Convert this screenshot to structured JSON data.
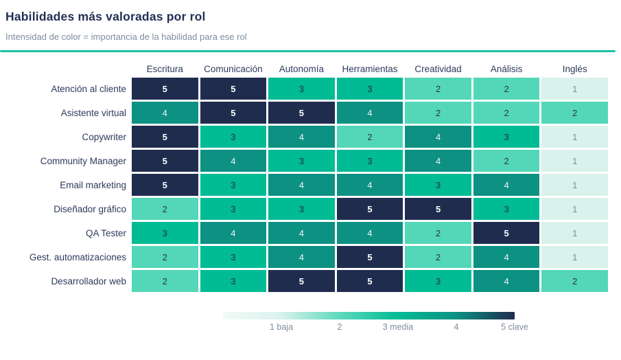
{
  "chart_data": {
    "type": "heatmap",
    "title": "Habilidades más valoradas por rol",
    "subtitle": "Intensidad de color = importancia de la habilidad para ese rol",
    "columns": [
      "Escritura",
      "Comunicación",
      "Autonomía",
      "Herramientas",
      "Creatividad",
      "Análisis",
      "Inglés"
    ],
    "rows": [
      "Atención al cliente",
      "Asistente virtual",
      "Copywriter",
      "Community Manager",
      "Email marketing",
      "Diseñador gráfico",
      "QA Tester",
      "Gest. automatizaciones",
      "Desarrollador web"
    ],
    "values": [
      [
        5,
        5,
        3,
        3,
        2,
        2,
        1
      ],
      [
        4,
        5,
        5,
        4,
        2,
        2,
        2
      ],
      [
        5,
        3,
        4,
        2,
        4,
        3,
        1
      ],
      [
        5,
        4,
        3,
        3,
        4,
        2,
        1
      ],
      [
        5,
        3,
        4,
        4,
        3,
        4,
        1
      ],
      [
        2,
        3,
        3,
        5,
        5,
        3,
        1
      ],
      [
        3,
        4,
        4,
        4,
        2,
        5,
        1
      ],
      [
        2,
        3,
        4,
        5,
        2,
        4,
        1
      ],
      [
        2,
        3,
        5,
        5,
        3,
        4,
        2
      ]
    ],
    "value_range": [
      1,
      5
    ],
    "legend": {
      "position": "bottom",
      "tick_labels": [
        "1 baja",
        "2",
        "3 media",
        "4",
        "5 clave"
      ]
    },
    "colors": {
      "value_1": "#d9f2ec",
      "value_2": "#53d7b8",
      "value_3": "#01bb95",
      "value_4": "#0c9182",
      "value_5": "#202c4e",
      "divider_accent": "#19c2a1",
      "title_text": "#243056",
      "muted_text": "#7f8ba0"
    }
  }
}
